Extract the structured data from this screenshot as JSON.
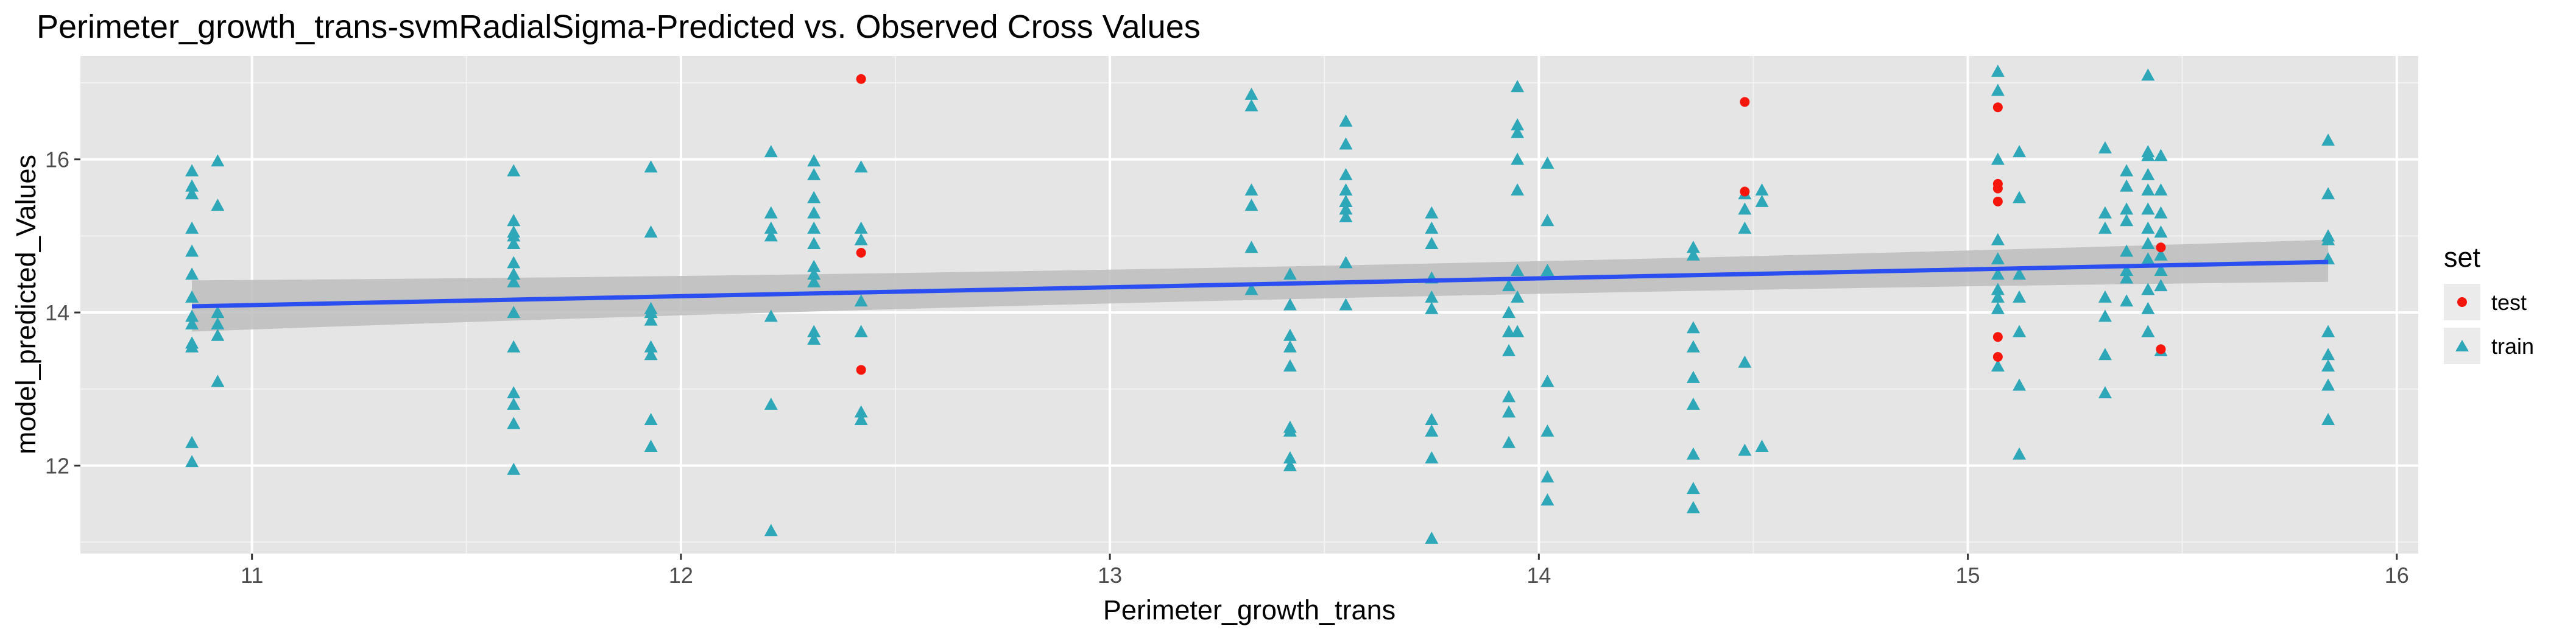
{
  "chart_data": {
    "type": "scatter",
    "title": "Perimeter_growth_trans-svmRadialSigma-Predicted vs. Observed Cross Values",
    "xlabel": "Perimeter_growth_trans",
    "ylabel": "model_predicted_Values",
    "xlim": [
      10.6,
      16.05
    ],
    "ylim": [
      10.85,
      17.35
    ],
    "x_ticks": [
      "11",
      "12",
      "13",
      "14",
      "15",
      "16"
    ],
    "y_ticks": [
      "12",
      "14",
      "16"
    ],
    "grid": true,
    "legend": {
      "title": "set",
      "position": "right",
      "entries": [
        "test",
        "train"
      ]
    },
    "colors": {
      "test": "#f8150b",
      "train": "#2ea7b8",
      "fit_line": "#2b4ef0",
      "ribbon": "#bdbdbd",
      "panel": "#e5e5e5",
      "grid": "#ffffff"
    },
    "fit_line": {
      "x": [
        10.86,
        15.84
      ],
      "y": [
        14.08,
        14.66
      ]
    },
    "confidence_band": {
      "x": [
        10.86,
        15.84
      ],
      "lower": [
        13.75,
        14.4
      ],
      "upper": [
        14.42,
        14.95
      ]
    },
    "series": [
      {
        "name": "test",
        "marker": "circle",
        "x": [
          12.42,
          12.42,
          12.42,
          14.48,
          14.48,
          15.07,
          15.07,
          15.07,
          15.07,
          15.07,
          15.07,
          15.45,
          15.45
        ],
        "y": [
          17.05,
          14.78,
          13.25,
          16.75,
          15.58,
          16.68,
          15.68,
          15.45,
          15.62,
          13.68,
          13.42,
          14.85,
          13.52
        ]
      },
      {
        "name": "train",
        "marker": "triangle",
        "x": [
          10.86,
          10.86,
          10.86,
          10.86,
          10.86,
          10.86,
          10.86,
          10.86,
          10.86,
          10.86,
          10.86,
          10.86,
          10.86,
          10.92,
          10.92,
          10.92,
          10.92,
          10.92,
          10.92,
          11.61,
          11.61,
          11.61,
          11.61,
          11.61,
          11.61,
          11.61,
          11.61,
          11.61,
          11.61,
          11.61,
          11.61,
          11.61,
          11.61,
          11.93,
          11.93,
          11.93,
          11.93,
          11.93,
          11.93,
          11.93,
          11.93,
          11.93,
          12.21,
          12.21,
          12.21,
          12.21,
          12.21,
          12.21,
          12.21,
          12.31,
          12.31,
          12.31,
          12.31,
          12.31,
          12.31,
          12.31,
          12.31,
          12.31,
          12.31,
          12.31,
          12.42,
          12.42,
          12.42,
          12.42,
          12.42,
          12.42,
          12.42,
          13.33,
          13.33,
          13.33,
          13.33,
          13.33,
          13.33,
          13.42,
          13.42,
          13.42,
          13.42,
          13.42,
          13.42,
          13.42,
          13.42,
          13.42,
          13.55,
          13.55,
          13.55,
          13.55,
          13.55,
          13.55,
          13.55,
          13.55,
          13.55,
          13.55,
          13.75,
          13.75,
          13.75,
          13.75,
          13.75,
          13.75,
          13.75,
          13.75,
          13.75,
          13.75,
          13.93,
          13.93,
          13.93,
          13.93,
          13.93,
          13.93,
          13.93,
          13.95,
          13.95,
          13.95,
          13.95,
          13.95,
          13.95,
          13.95,
          13.95,
          14.02,
          14.02,
          14.02,
          14.02,
          14.02,
          14.02,
          14.02,
          14.36,
          14.36,
          14.36,
          14.36,
          14.36,
          14.36,
          14.36,
          14.36,
          14.36,
          14.48,
          14.48,
          14.48,
          14.48,
          14.48,
          14.52,
          14.52,
          14.52,
          15.07,
          15.07,
          15.07,
          15.07,
          15.07,
          15.07,
          15.07,
          15.07,
          15.07,
          15.07,
          15.12,
          15.12,
          15.12,
          15.12,
          15.12,
          15.12,
          15.12,
          15.32,
          15.32,
          15.32,
          15.32,
          15.32,
          15.32,
          15.32,
          15.37,
          15.37,
          15.37,
          15.37,
          15.37,
          15.37,
          15.37,
          15.37,
          15.42,
          15.42,
          15.42,
          15.42,
          15.42,
          15.42,
          15.42,
          15.42,
          15.42,
          15.42,
          15.42,
          15.42,
          15.45,
          15.45,
          15.45,
          15.45,
          15.45,
          15.45,
          15.45,
          15.45,
          15.84,
          15.84,
          15.84,
          15.84,
          15.84,
          15.84,
          15.84,
          15.84,
          15.84,
          15.84
        ],
        "y": [
          15.85,
          15.65,
          15.55,
          15.1,
          14.8,
          14.5,
          14.2,
          13.95,
          13.85,
          13.6,
          13.55,
          12.3,
          12.05,
          15.98,
          15.4,
          14.0,
          13.85,
          13.7,
          13.1,
          15.85,
          15.2,
          15.0,
          14.9,
          14.65,
          14.5,
          14.4,
          14.0,
          13.55,
          12.95,
          12.8,
          12.55,
          11.95,
          15.05,
          15.9,
          15.05,
          14.05,
          14.0,
          13.9,
          13.55,
          13.45,
          12.6,
          12.25,
          16.1,
          15.3,
          15.1,
          15.0,
          13.95,
          12.8,
          11.15,
          15.98,
          15.8,
          15.5,
          15.3,
          15.1,
          14.9,
          14.6,
          14.5,
          14.4,
          13.75,
          13.65,
          15.9,
          15.1,
          14.95,
          14.15,
          13.75,
          12.7,
          12.6,
          16.85,
          16.7,
          15.6,
          15.4,
          14.85,
          14.3,
          14.5,
          14.1,
          13.7,
          13.55,
          13.3,
          12.5,
          12.45,
          12.1,
          12.0,
          16.5,
          16.2,
          15.8,
          15.6,
          15.45,
          15.35,
          15.25,
          14.65,
          14.1,
          15.45,
          15.3,
          15.1,
          14.9,
          14.45,
          14.2,
          14.05,
          12.6,
          12.45,
          12.1,
          11.05,
          14.35,
          14.0,
          13.75,
          13.5,
          12.9,
          12.7,
          12.3,
          16.95,
          16.45,
          16.35,
          16.0,
          15.6,
          14.55,
          14.2,
          13.75,
          15.95,
          15.2,
          14.55,
          13.1,
          12.45,
          11.85,
          11.55,
          14.85,
          14.75,
          13.8,
          13.55,
          13.15,
          12.8,
          12.15,
          11.7,
          11.45,
          15.55,
          15.35,
          15.1,
          13.35,
          12.2,
          15.6,
          15.45,
          12.25,
          17.15,
          16.9,
          16.0,
          14.95,
          14.7,
          14.5,
          14.3,
          14.2,
          14.05,
          13.3,
          16.1,
          15.5,
          14.5,
          14.2,
          13.75,
          13.05,
          12.15,
          16.15,
          15.3,
          15.1,
          14.2,
          13.95,
          13.45,
          12.95,
          15.85,
          15.65,
          15.35,
          15.2,
          14.8,
          14.55,
          14.45,
          14.15,
          17.1,
          16.1,
          16.05,
          15.8,
          15.6,
          15.35,
          15.1,
          14.9,
          14.7,
          14.3,
          14.05,
          13.75,
          16.05,
          15.6,
          15.3,
          15.05,
          14.75,
          14.55,
          14.35,
          13.5,
          16.25,
          15.55,
          15.0,
          14.95,
          14.7,
          13.75,
          13.45,
          13.3,
          13.05,
          12.6
        ]
      }
    ]
  }
}
